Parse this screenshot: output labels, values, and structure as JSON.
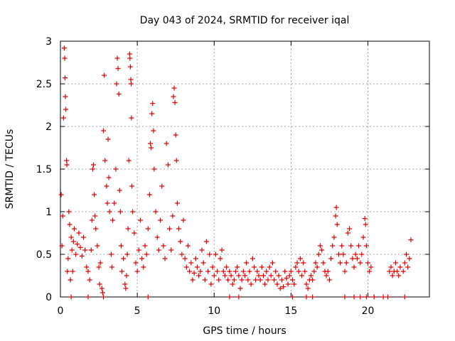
{
  "colors": {
    "series": "#e00000",
    "grid": "#a0a0a0",
    "axis": "#000000",
    "background": "#ffffff"
  },
  "chart_data": {
    "type": "scatter",
    "title": "Day 043 of 2024, SRMTID for receiver iqal",
    "xlabel": "GPS time / hours",
    "ylabel": "SRMTID / TECUs",
    "xlim": [
      0,
      24
    ],
    "ylim": [
      0,
      3
    ],
    "x_ticks": [
      0,
      5,
      10,
      15,
      20
    ],
    "y_ticks": [
      0,
      0.5,
      1,
      1.5,
      2,
      2.5,
      3
    ],
    "x_tick_labels": [
      "0",
      "5",
      "10",
      "15",
      "20"
    ],
    "y_tick_labels": [
      "0",
      "0.5",
      "1",
      "1.5",
      "2",
      "2.5",
      "3"
    ],
    "grid": true,
    "marker": "plus",
    "series": [
      {
        "name": "SRMTID",
        "points": [
          [
            0.05,
            1.2
          ],
          [
            0.1,
            0.6
          ],
          [
            0.15,
            0.95
          ],
          [
            0.2,
            2.1
          ],
          [
            0.25,
            2.92
          ],
          [
            0.28,
            2.8
          ],
          [
            0.3,
            2.57
          ],
          [
            0.32,
            2.35
          ],
          [
            0.35,
            2.2
          ],
          [
            0.4,
            1.6
          ],
          [
            0.42,
            1.55
          ],
          [
            0.45,
            0.3
          ],
          [
            0.5,
            0.45
          ],
          [
            0.55,
            1.0
          ],
          [
            0.6,
            0.85
          ],
          [
            0.65,
            0.2
          ],
          [
            0.7,
            0.7
          ],
          [
            0.75,
            0.55
          ],
          [
            0.8,
            0.3
          ],
          [
            0.85,
            0.65
          ],
          [
            0.9,
            0.8
          ],
          [
            1.0,
            0.5
          ],
          [
            1.1,
            0.62
          ],
          [
            1.2,
            0.75
          ],
          [
            1.3,
            0.58
          ],
          [
            1.4,
            0.48
          ],
          [
            1.5,
            0.7
          ],
          [
            1.6,
            0.55
          ],
          [
            1.7,
            0.35
          ],
          [
            1.8,
            0.3
          ],
          [
            1.9,
            0.2
          ],
          [
            2.0,
            0.55
          ],
          [
            2.05,
            0.9
          ],
          [
            2.1,
            1.5
          ],
          [
            2.15,
            1.55
          ],
          [
            2.2,
            1.2
          ],
          [
            2.25,
            0.95
          ],
          [
            2.3,
            0.8
          ],
          [
            2.4,
            0.6
          ],
          [
            2.5,
            0.35
          ],
          [
            2.55,
            0.15
          ],
          [
            2.6,
            0.4
          ],
          [
            2.7,
            0.1
          ],
          [
            2.75,
            0.05
          ],
          [
            2.8,
            1.95
          ],
          [
            2.85,
            2.6
          ],
          [
            2.9,
            1.6
          ],
          [
            3.0,
            1.3
          ],
          [
            3.05,
            1.1
          ],
          [
            3.1,
            1.85
          ],
          [
            3.15,
            1.4
          ],
          [
            3.2,
            1.0
          ],
          [
            3.3,
            0.5
          ],
          [
            3.35,
            0.35
          ],
          [
            3.4,
            0.9
          ],
          [
            3.5,
            1.1
          ],
          [
            3.6,
            1.5
          ],
          [
            3.65,
            2.5
          ],
          [
            3.7,
            2.8
          ],
          [
            3.75,
            2.68
          ],
          [
            3.8,
            2.38
          ],
          [
            3.85,
            1.25
          ],
          [
            3.9,
            1.0
          ],
          [
            3.95,
            0.6
          ],
          [
            4.0,
            0.3
          ],
          [
            4.1,
            0.45
          ],
          [
            4.2,
            0.15
          ],
          [
            4.25,
            0.1
          ],
          [
            4.3,
            0.25
          ],
          [
            4.35,
            0.5
          ],
          [
            4.4,
            0.8
          ],
          [
            4.45,
            1.6
          ],
          [
            4.5,
            2.85
          ],
          [
            4.52,
            2.8
          ],
          [
            4.55,
            2.7
          ],
          [
            4.58,
            2.55
          ],
          [
            4.6,
            2.5
          ],
          [
            4.62,
            2.1
          ],
          [
            4.65,
            1.3
          ],
          [
            4.7,
            1.0
          ],
          [
            4.8,
            0.75
          ],
          [
            4.9,
            0.4
          ],
          [
            5.0,
            0.3
          ],
          [
            5.1,
            0.55
          ],
          [
            5.2,
            0.9
          ],
          [
            5.3,
            0.45
          ],
          [
            5.4,
            0.35
          ],
          [
            5.5,
            0.6
          ],
          [
            5.6,
            0.5
          ],
          [
            5.7,
            0.8
          ],
          [
            5.8,
            1.2
          ],
          [
            5.85,
            1.8
          ],
          [
            5.9,
            1.75
          ],
          [
            5.95,
            2.15
          ],
          [
            6.0,
            2.27
          ],
          [
            6.05,
            1.95
          ],
          [
            6.1,
            1.5
          ],
          [
            6.2,
            1.0
          ],
          [
            6.3,
            0.7
          ],
          [
            6.4,
            0.55
          ],
          [
            6.5,
            0.9
          ],
          [
            6.6,
            1.3
          ],
          [
            6.7,
            0.6
          ],
          [
            6.8,
            0.45
          ],
          [
            6.9,
            1.8
          ],
          [
            7.0,
            1.55
          ],
          [
            7.1,
            0.8
          ],
          [
            7.2,
            0.55
          ],
          [
            7.3,
            0.95
          ],
          [
            7.35,
            2.35
          ],
          [
            7.4,
            2.45
          ],
          [
            7.45,
            2.28
          ],
          [
            7.5,
            1.9
          ],
          [
            7.55,
            1.6
          ],
          [
            7.6,
            1.1
          ],
          [
            7.7,
            0.8
          ],
          [
            7.8,
            0.65
          ],
          [
            7.9,
            0.5
          ],
          [
            8.0,
            0.9
          ],
          [
            8.1,
            0.45
          ],
          [
            8.2,
            0.35
          ],
          [
            8.3,
            0.6
          ],
          [
            8.4,
            0.3
          ],
          [
            8.5,
            0.4
          ],
          [
            8.6,
            0.2
          ],
          [
            8.7,
            0.28
          ],
          [
            8.8,
            0.45
          ],
          [
            8.9,
            0.35
          ],
          [
            9.0,
            0.25
          ],
          [
            9.1,
            0.3
          ],
          [
            9.2,
            0.55
          ],
          [
            9.3,
            0.4
          ],
          [
            9.4,
            0.2
          ],
          [
            9.5,
            0.65
          ],
          [
            9.6,
            0.3
          ],
          [
            9.7,
            0.5
          ],
          [
            9.8,
            0.15
          ],
          [
            9.9,
            0.35
          ],
          [
            10.0,
            0.25
          ],
          [
            10.1,
            0.5
          ],
          [
            10.2,
            0.3
          ],
          [
            10.3,
            0.2
          ],
          [
            10.4,
            0.45
          ],
          [
            10.5,
            0.55
          ],
          [
            10.6,
            0.3
          ],
          [
            10.7,
            0.25
          ],
          [
            10.8,
            0.35
          ],
          [
            10.9,
            0.2
          ],
          [
            11.0,
            0.3
          ],
          [
            11.1,
            0.25
          ],
          [
            11.2,
            0.15
          ],
          [
            11.3,
            0.2
          ],
          [
            11.4,
            0.3
          ],
          [
            11.5,
            0.35
          ],
          [
            11.6,
            0.25
          ],
          [
            11.7,
            0.1
          ],
          [
            11.8,
            0.2
          ],
          [
            11.9,
            0.3
          ],
          [
            12.0,
            0.25
          ],
          [
            12.1,
            0.4
          ],
          [
            12.2,
            0.2
          ],
          [
            12.3,
            0.3
          ],
          [
            12.4,
            0.15
          ],
          [
            12.5,
            0.45
          ],
          [
            12.6,
            0.35
          ],
          [
            12.7,
            0.2
          ],
          [
            12.8,
            0.3
          ],
          [
            12.9,
            0.25
          ],
          [
            13.0,
            0.2
          ],
          [
            13.1,
            0.35
          ],
          [
            13.2,
            0.25
          ],
          [
            13.3,
            0.15
          ],
          [
            13.4,
            0.3
          ],
          [
            13.5,
            0.2
          ],
          [
            13.6,
            0.35
          ],
          [
            13.7,
            0.25
          ],
          [
            13.8,
            0.4
          ],
          [
            13.9,
            0.2
          ],
          [
            14.0,
            0.3
          ],
          [
            14.1,
            0.15
          ],
          [
            14.2,
            0.25
          ],
          [
            14.3,
            0.1
          ],
          [
            14.4,
            0.2
          ],
          [
            14.5,
            0.12
          ],
          [
            14.6,
            0.3
          ],
          [
            14.7,
            0.22
          ],
          [
            14.8,
            0.15
          ],
          [
            14.9,
            0.25
          ],
          [
            15.0,
            0.3
          ],
          [
            15.1,
            0.2
          ],
          [
            15.2,
            0.15
          ],
          [
            15.3,
            0.35
          ],
          [
            15.4,
            0.4
          ],
          [
            15.5,
            0.3
          ],
          [
            15.6,
            0.45
          ],
          [
            15.7,
            0.25
          ],
          [
            15.8,
            0.4
          ],
          [
            15.9,
            0.3
          ],
          [
            16.0,
            0.15
          ],
          [
            16.1,
            0.1
          ],
          [
            16.2,
            0.2
          ],
          [
            16.3,
            0.25
          ],
          [
            16.4,
            0.2
          ],
          [
            16.5,
            0.3
          ],
          [
            16.6,
            0.4
          ],
          [
            16.7,
            0.35
          ],
          [
            16.8,
            0.5
          ],
          [
            16.9,
            0.6
          ],
          [
            17.0,
            0.55
          ],
          [
            17.1,
            0.4
          ],
          [
            17.2,
            0.3
          ],
          [
            17.3,
            0.25
          ],
          [
            17.4,
            0.3
          ],
          [
            17.5,
            0.2
          ],
          [
            17.6,
            0.45
          ],
          [
            17.7,
            0.6
          ],
          [
            17.8,
            0.7
          ],
          [
            17.9,
            0.95
          ],
          [
            17.95,
            1.05
          ],
          [
            18.0,
            0.85
          ],
          [
            18.1,
            0.5
          ],
          [
            18.2,
            0.4
          ],
          [
            18.3,
            0.6
          ],
          [
            18.4,
            0.5
          ],
          [
            18.5,
            0.3
          ],
          [
            18.6,
            0.4
          ],
          [
            18.7,
            0.75
          ],
          [
            18.8,
            0.8
          ],
          [
            18.9,
            0.6
          ],
          [
            19.0,
            0.45
          ],
          [
            19.1,
            0.35
          ],
          [
            19.2,
            0.5
          ],
          [
            19.3,
            0.45
          ],
          [
            19.4,
            0.6
          ],
          [
            19.5,
            0.4
          ],
          [
            19.6,
            0.5
          ],
          [
            19.7,
            0.7
          ],
          [
            19.8,
            0.92
          ],
          [
            19.85,
            0.85
          ],
          [
            19.9,
            0.6
          ],
          [
            20.0,
            0.4
          ],
          [
            20.1,
            0.3
          ],
          [
            20.2,
            0.35
          ],
          [
            21.4,
            0.3
          ],
          [
            21.5,
            0.35
          ],
          [
            21.6,
            0.25
          ],
          [
            21.7,
            0.3
          ],
          [
            21.8,
            0.4
          ],
          [
            21.9,
            0.3
          ],
          [
            22.0,
            0.25
          ],
          [
            22.1,
            0.35
          ],
          [
            22.3,
            0.3
          ],
          [
            22.4,
            0.4
          ],
          [
            22.5,
            0.5
          ],
          [
            22.6,
            0.35
          ],
          [
            22.7,
            0.45
          ],
          [
            22.8,
            0.67
          ]
        ]
      },
      {
        "name": "zero-level markers",
        "points": [
          [
            0.7,
            0
          ],
          [
            1.8,
            0
          ],
          [
            2.8,
            0
          ],
          [
            5.7,
            0
          ],
          [
            11.0,
            0
          ],
          [
            11.6,
            0
          ],
          [
            15.1,
            0
          ],
          [
            16.0,
            0
          ],
          [
            16.4,
            0
          ],
          [
            18.5,
            0
          ],
          [
            19.1,
            0
          ],
          [
            19.5,
            0
          ],
          [
            19.9,
            0
          ],
          [
            20.4,
            0
          ],
          [
            21.0,
            0
          ],
          [
            21.3,
            0
          ],
          [
            22.4,
            0
          ]
        ]
      }
    ]
  }
}
